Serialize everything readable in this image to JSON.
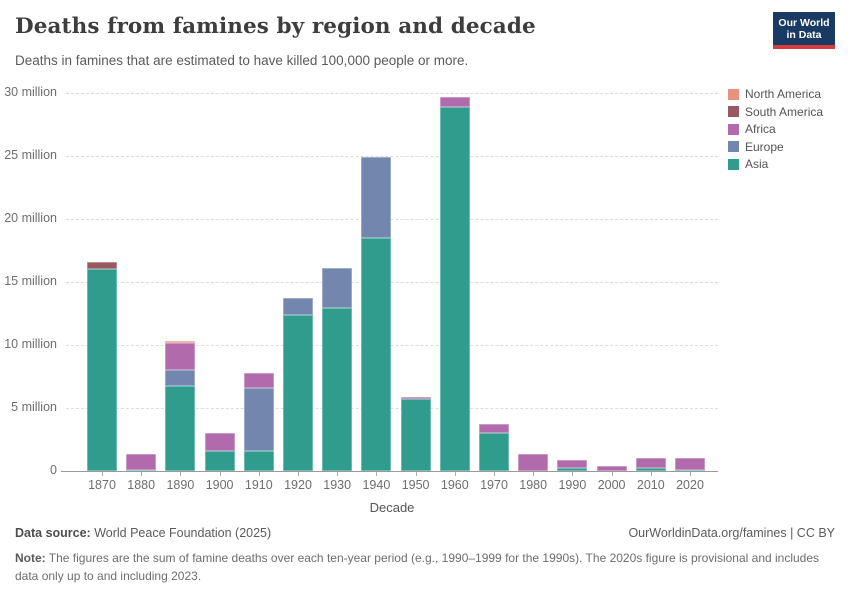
{
  "header": {
    "title": "Deaths from famines by region and decade",
    "subtitle": "Deaths in famines that are estimated to have killed 100,000 people or more.",
    "logo_line1": "Our World",
    "logo_line2": "in Data",
    "logo_bg_color": "#183a63",
    "logo_accent_color": "#d73b3e"
  },
  "legend": {
    "items": [
      {
        "label": "North America",
        "color": "#E8917C"
      },
      {
        "label": "South America",
        "color": "#9A5862"
      },
      {
        "label": "Africa",
        "color": "#B16BAD"
      },
      {
        "label": "Europe",
        "color": "#7286AE"
      },
      {
        "label": "Asia",
        "color": "#2F9C8E"
      }
    ]
  },
  "chart_data": {
    "type": "bar",
    "stacked": true,
    "title": "Deaths from famines by region and decade",
    "unit": "deaths (millions)",
    "categories": [
      "1870",
      "1880",
      "1890",
      "1900",
      "1910",
      "1920",
      "1930",
      "1940",
      "1950",
      "1960",
      "1970",
      "1980",
      "1990",
      "2000",
      "2010",
      "2020"
    ],
    "xlabel": "Decade",
    "ylabel": "",
    "ylim_millions": [
      0,
      30
    ],
    "yticks_millions": [
      0,
      5,
      10,
      15,
      20,
      25,
      30
    ],
    "ytick_labels": [
      "0",
      "5 million",
      "10 million",
      "15 million",
      "20 million",
      "25 million",
      "30 million"
    ],
    "grid": "dashed horizontal",
    "legend_position": "right",
    "stack_order_bottom_to_top": [
      "Asia",
      "Europe",
      "Africa",
      "South America",
      "North America"
    ],
    "series": [
      {
        "name": "Asia",
        "color": "#2F9C8E",
        "values_millions": [
          16.0,
          0.1,
          6.75,
          1.6,
          1.6,
          12.4,
          12.9,
          18.5,
          5.7,
          28.85,
          3.0,
          0,
          0.2,
          0,
          0.2,
          0.1
        ]
      },
      {
        "name": "Europe",
        "color": "#7286AE",
        "values_millions": [
          0,
          0,
          1.3,
          0,
          5.0,
          1.35,
          3.2,
          6.45,
          0,
          0,
          0,
          0,
          0,
          0,
          0,
          0
        ]
      },
      {
        "name": "Africa",
        "color": "#B16BAD",
        "values_millions": [
          0,
          1.25,
          2.1,
          1.45,
          1.2,
          0,
          0,
          0,
          0.15,
          0.85,
          0.75,
          1.35,
          0.7,
          0.4,
          0.85,
          0.9
        ]
      },
      {
        "name": "South America",
        "color": "#9A5862",
        "values_millions": [
          0.55,
          0,
          0,
          0,
          0,
          0,
          0,
          0,
          0,
          0,
          0,
          0,
          0,
          0,
          0,
          0
        ]
      },
      {
        "name": "North America",
        "color": "#E8917C",
        "values_millions": [
          0,
          0,
          0.15,
          0,
          0,
          0,
          0,
          0,
          0,
          0,
          0,
          0,
          0,
          0,
          0,
          0
        ]
      }
    ],
    "totals_millions": [
      16.55,
      1.35,
      10.3,
      3.05,
      7.8,
      13.75,
      16.1,
      24.95,
      5.85,
      29.7,
      3.75,
      1.35,
      0.9,
      0.4,
      1.05,
      1.0
    ]
  },
  "footer": {
    "datasource_label": "Data source:",
    "datasource_value": " World Peace Foundation (2025)",
    "link": "OurWorldinData.org/famines | CC BY",
    "note_label": "Note:",
    "note_text": " The figures are the sum of famine deaths over each ten-year period (e.g., 1990–1999 for the 1990s). The 2020s figure is provisional and includes data only up to and including 2023."
  }
}
